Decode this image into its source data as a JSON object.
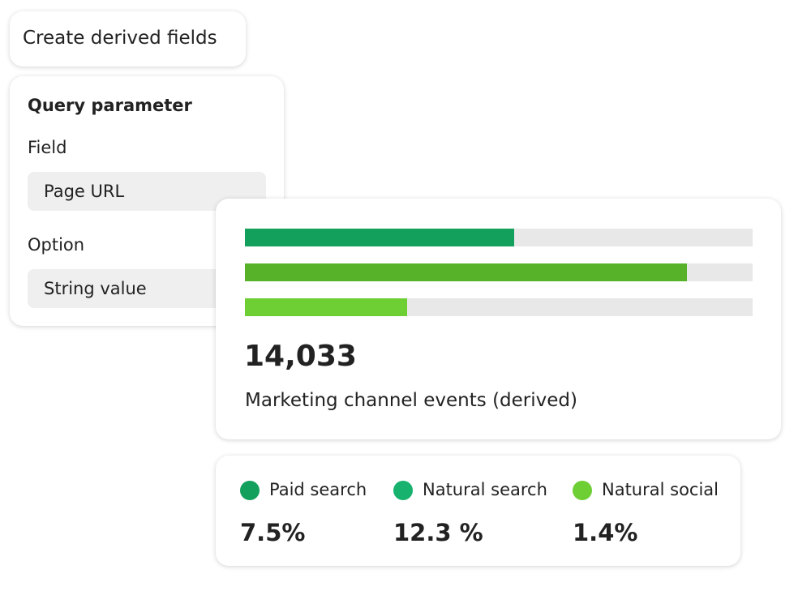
{
  "derived_button": {
    "label": "Create derived fields"
  },
  "query_card": {
    "title": "Query parameter",
    "fields": [
      {
        "label": "Field",
        "value": "Page URL"
      },
      {
        "label": "Option",
        "value": "String value"
      }
    ]
  },
  "bar_card": {
    "xlim": [
      0,
      100
    ],
    "track_color": "#e8e8e8",
    "bars": [
      {
        "value": 53,
        "color": "#12a05c"
      },
      {
        "value": 87,
        "color": "#57b22a"
      },
      {
        "value": 32,
        "color": "#6dcf34"
      }
    ],
    "total": "14,033",
    "caption": "Marketing channel events (derived)"
  },
  "legend_card": {
    "items": [
      {
        "name": "Paid search",
        "color": "#12a05c",
        "value": "7.5%"
      },
      {
        "name": "Natural search",
        "color": "#16b26e",
        "value": "12.3 %"
      },
      {
        "name": "Natural social",
        "color": "#6dcf34",
        "value": "1.4%"
      }
    ]
  }
}
